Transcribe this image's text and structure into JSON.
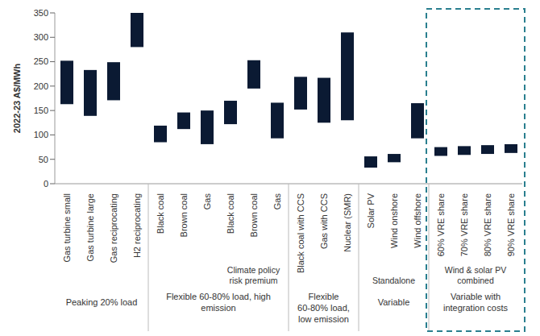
{
  "chart_data": {
    "type": "bar",
    "y_label": "2022-23 A$/MWh",
    "color": "#0b1a33",
    "categories": [
      "Gas turbine small",
      "Gas turbine large",
      "Gas reciprocating",
      "H2 reciprocating",
      "Black coal",
      "Brown coal",
      "Gas",
      "Black coal",
      "Brown coal",
      "Gas",
      "Black coal with CCS",
      "Gas with CCS",
      "Nuclear (SMR)",
      "Solar PV",
      "Wind onshore",
      "Wind offshore",
      "60% VRE share",
      "70% VRE share",
      "80% VRE share",
      "90% VRE share"
    ],
    "low": [
      163,
      139,
      171,
      280,
      85,
      112,
      81,
      122,
      195,
      93,
      152,
      125,
      130,
      33,
      44,
      93,
      57,
      59,
      61,
      63
    ],
    "high": [
      252,
      233,
      249,
      350,
      119,
      146,
      150,
      170,
      253,
      166,
      219,
      217,
      310,
      56,
      61,
      165,
      75,
      77,
      79,
      81
    ],
    "ylim": [
      0,
      350
    ],
    "yticks": [
      0,
      50,
      100,
      150,
      200,
      250,
      300,
      350
    ],
    "groups": [
      {
        "label": "Peaking 20% load",
        "span": 4
      },
      {
        "label": "Flexible 60-80% load, high emission",
        "span": 6
      },
      {
        "label": "Flexible 60-80% load, low emission",
        "span": 3
      },
      {
        "label": "Variable",
        "span": 3
      },
      {
        "label": "Variable with integration costs",
        "span": 4
      }
    ],
    "subgroups": [
      {
        "label": "Climate policy risk premium",
        "start": 7,
        "span": 3
      },
      {
        "label": "Standalone",
        "start": 13,
        "span": 3
      },
      {
        "label": "Wind & solar PV combined",
        "start": 16,
        "span": 4
      }
    ],
    "grid": false
  }
}
